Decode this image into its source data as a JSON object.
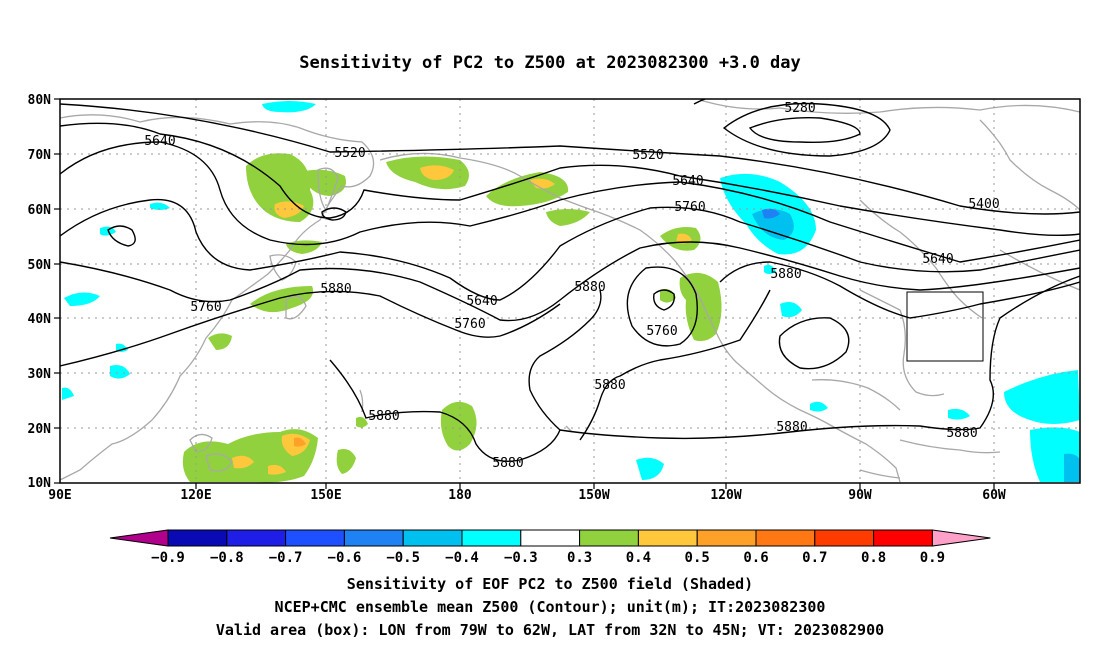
{
  "title": "Sensitivity of PC2 to Z500 at 2023082300 +3.0 day",
  "lat_labels": [
    "80N",
    "70N",
    "60N",
    "50N",
    "40N",
    "30N",
    "20N",
    "10N"
  ],
  "lon_labels": [
    "90E",
    "120E",
    "150E",
    "180",
    "150W",
    "120W",
    "90W",
    "60W"
  ],
  "contour_labels": [
    {
      "id": "c1",
      "text": "5280"
    },
    {
      "id": "c2",
      "text": "5400"
    },
    {
      "id": "c3",
      "text": "5520"
    },
    {
      "id": "c4",
      "text": "5520"
    },
    {
      "id": "c5",
      "text": "5640"
    },
    {
      "id": "c6",
      "text": "5640"
    },
    {
      "id": "c7",
      "text": "5640"
    },
    {
      "id": "c8",
      "text": "5640"
    },
    {
      "id": "c9",
      "text": "5760"
    },
    {
      "id": "c10",
      "text": "5760"
    },
    {
      "id": "c11",
      "text": "5760"
    },
    {
      "id": "c12",
      "text": "5760"
    },
    {
      "id": "c13",
      "text": "5880"
    },
    {
      "id": "c14",
      "text": "5880"
    },
    {
      "id": "c15",
      "text": "5880"
    },
    {
      "id": "c16",
      "text": "5880"
    },
    {
      "id": "c17",
      "text": "5880"
    },
    {
      "id": "c18",
      "text": "5880"
    },
    {
      "id": "c19",
      "text": "5880"
    },
    {
      "id": "c20",
      "text": "5880"
    }
  ],
  "colorbar": {
    "colors": [
      "#b0008c",
      "#0a0ab4",
      "#1e1ee6",
      "#1e50ff",
      "#1e82f5",
      "#00c0f0",
      "#00ffff",
      "#ffffff",
      "#92d13e",
      "#ffc83c",
      "#ffa028",
      "#ff7814",
      "#ff3c00",
      "#ff0000",
      "#ffa0c8"
    ],
    "labels": [
      "−0.9",
      "−0.8",
      "−0.7",
      "−0.6",
      "−0.5",
      "−0.4",
      "−0.3",
      "0.3",
      "0.4",
      "0.5",
      "0.6",
      "0.7",
      "0.8",
      "0.9"
    ]
  },
  "footer": {
    "line1": "Sensitivity of EOF PC2 to Z500 field (Shaded)",
    "line2": "NCEP+CMC ensemble mean Z500 (Contour); unit(m); IT:2023082300",
    "line3": "Valid area (box): LON from 79W to 62W, LAT from 32N to 45N; VT: 2023082900"
  }
}
